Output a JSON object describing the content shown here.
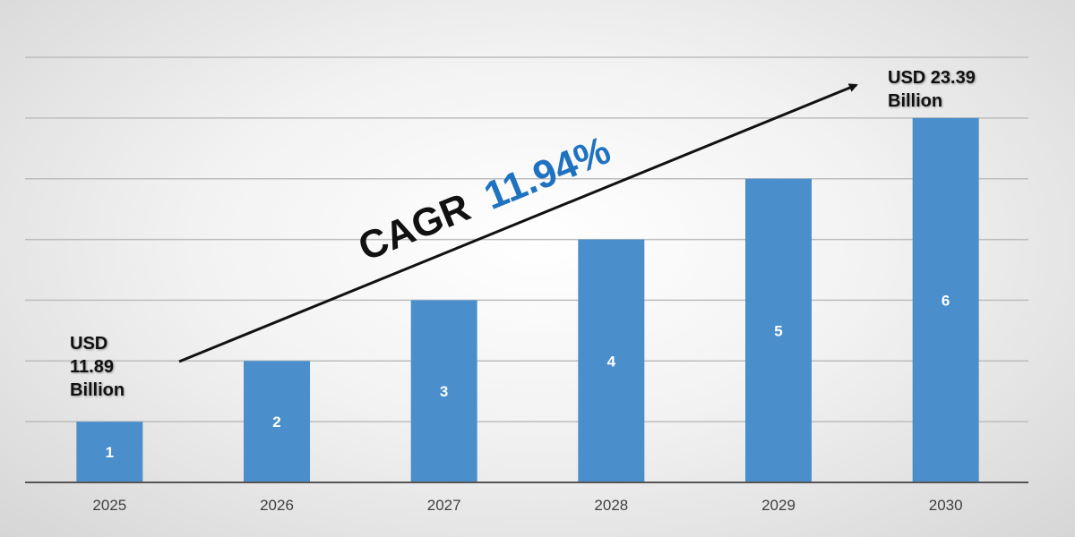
{
  "chart_data": {
    "type": "bar",
    "categories": [
      "2025",
      "2026",
      "2027",
      "2028",
      "2029",
      "2030"
    ],
    "values": [
      1,
      2,
      3,
      4,
      5,
      6
    ],
    "data_labels": [
      "1",
      "2",
      "3",
      "4",
      "5",
      "6"
    ],
    "ylim": [
      0,
      7
    ],
    "grid": true,
    "bar_color": "#4a8fcb",
    "annotations": {
      "start_label": [
        "USD",
        "11.89",
        "Billion"
      ],
      "end_label": [
        "USD 23.39",
        "Billion"
      ],
      "cagr_prefix": "CAGR",
      "cagr_value": "11.94%",
      "cagr_color": "#1f72c0"
    }
  }
}
